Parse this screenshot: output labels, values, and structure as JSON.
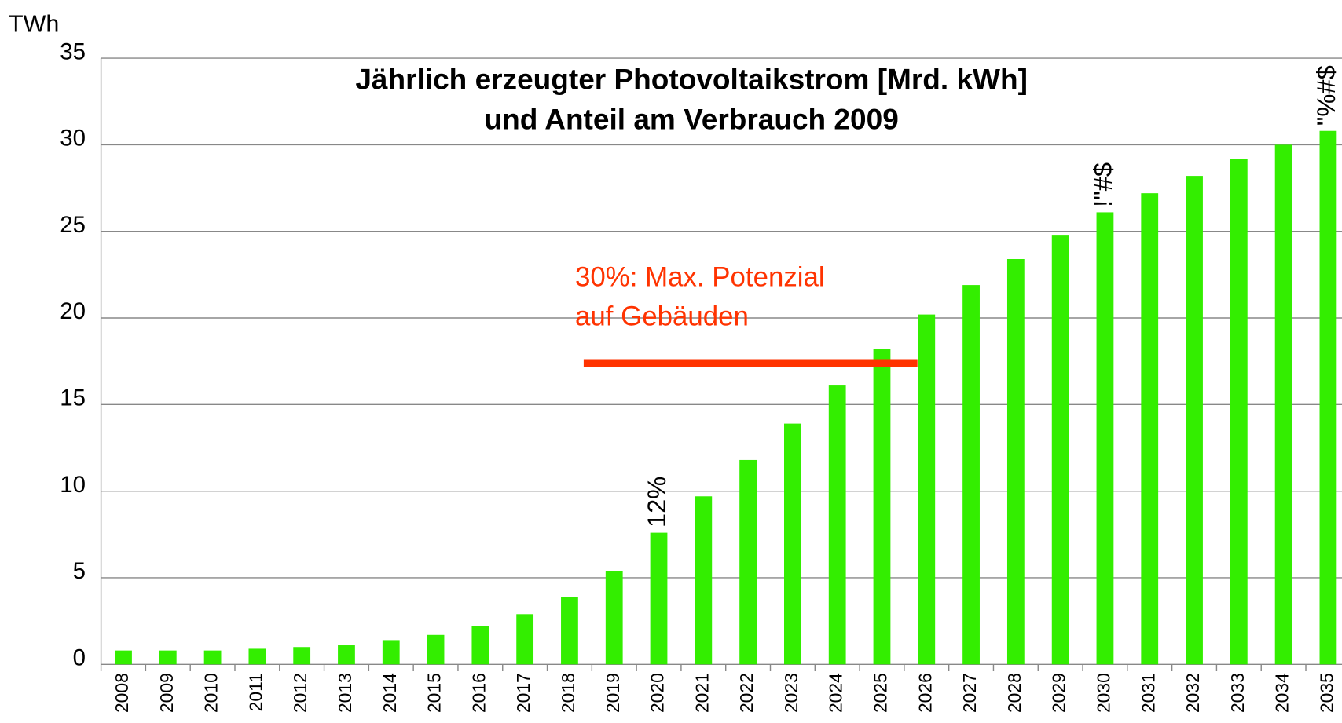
{
  "chart_data": {
    "type": "bar",
    "title": [
      "Jährlich erzeugter Photovoltaikstrom [Mrd. kWh]",
      "und Anteil am Verbrauch 2009"
    ],
    "y_axis_label": "TWh",
    "categories": [
      "2008",
      "2009",
      "2010",
      "2011",
      "2012",
      "2013",
      "2014",
      "2015",
      "2016",
      "2017",
      "2018",
      "2019",
      "2020",
      "2021",
      "2022",
      "2023",
      "2024",
      "2025",
      "2026",
      "2027",
      "2028",
      "2029",
      "2030",
      "2031",
      "2032",
      "2033",
      "2034",
      "2035"
    ],
    "values": [
      0.8,
      0.8,
      0.8,
      0.9,
      1.0,
      1.1,
      1.4,
      1.7,
      2.2,
      2.9,
      3.9,
      5.4,
      7.6,
      9.7,
      11.8,
      13.9,
      16.1,
      18.2,
      20.2,
      21.9,
      23.4,
      24.8,
      26.1,
      27.2,
      28.2,
      29.2,
      30.0,
      30.8
    ],
    "color": "#33ee00",
    "ylim": [
      0,
      35
    ],
    "yticks": [
      0,
      5,
      10,
      15,
      20,
      25,
      30,
      35
    ],
    "grid": true,
    "annotations": [
      {
        "text": "12%",
        "category": "2020"
      },
      {
        "text": "!\"#$",
        "category": "2030"
      },
      {
        "text": "\"%#$",
        "category": "2035"
      }
    ],
    "reference_line": {
      "value": 17.4,
      "color": "#ff3300",
      "label": [
        "30%: Max. Potenzial",
        "auf Gebäuden"
      ]
    }
  }
}
